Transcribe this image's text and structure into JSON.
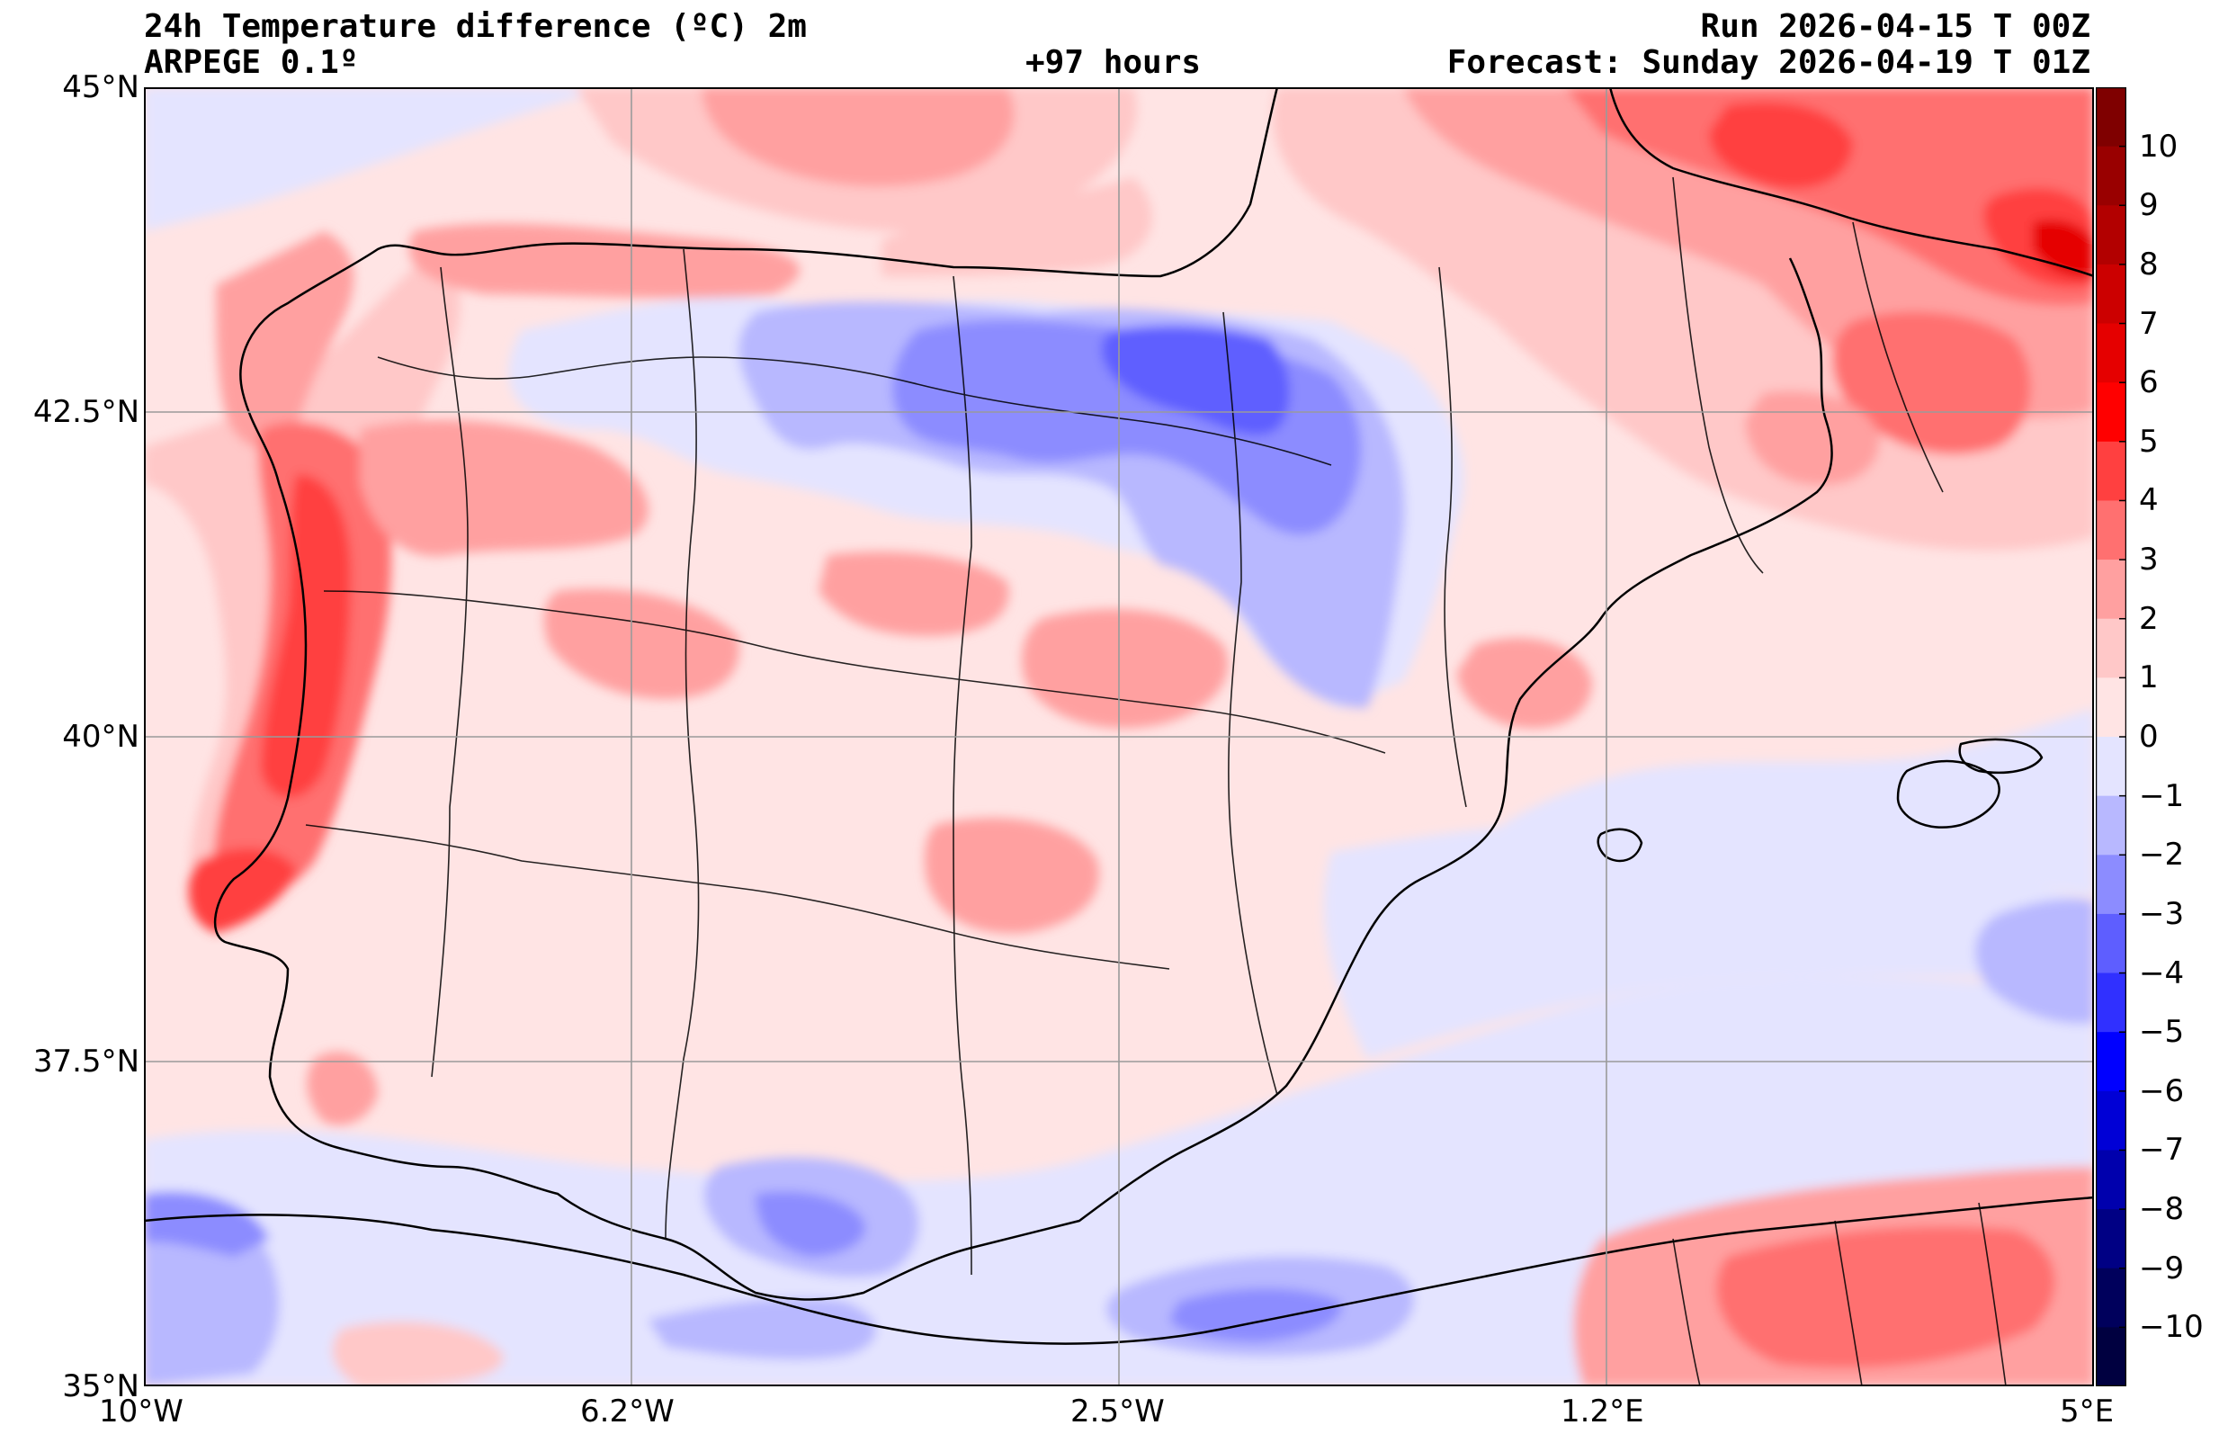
{
  "header": {
    "title": "24h Temperature difference (ºC) 2m",
    "model": "ARPEGE 0.1º",
    "lead": "+97 hours",
    "run": "Run 2026-04-15 T 00Z",
    "forecast": "Forecast: Sunday 2026-04-19 T 01Z"
  },
  "axes": {
    "lat_labels": [
      "45°N",
      "42.5°N",
      "40°N",
      "37.5°N",
      "35°N"
    ],
    "lon_labels": [
      "10°W",
      "6.2°W",
      "2.5°W",
      "1.2°E",
      "5°E"
    ]
  },
  "colorbar": {
    "labels": [
      "10",
      "9",
      "8",
      "7",
      "6",
      "5",
      "4",
      "3",
      "2",
      "1",
      "0",
      "−1",
      "−2",
      "−3",
      "−4",
      "−5",
      "−6",
      "−7",
      "−8",
      "−9",
      "−10"
    ],
    "colors": [
      "#7f0000",
      "#990000",
      "#b20000",
      "#cc0000",
      "#e50000",
      "#ff0000",
      "#ff4040",
      "#ff7070",
      "#ffa0a0",
      "#ffc8c8",
      "#ffe4e4",
      "#e4e4ff",
      "#b8b8ff",
      "#8c8cff",
      "#5e5eff",
      "#3030ff",
      "#0000ff",
      "#0000d6",
      "#0000ad",
      "#000084",
      "#00005c",
      "#000040"
    ]
  }
}
